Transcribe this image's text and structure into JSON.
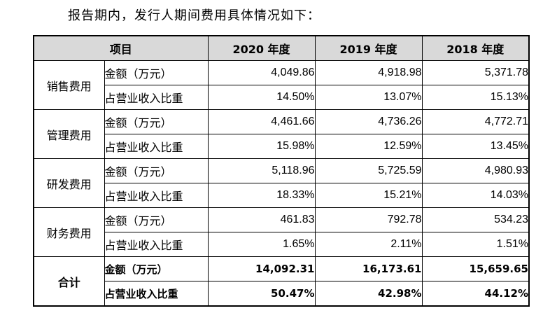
{
  "intro": "报告期内，发行人期间费用具体情况如下：",
  "headers": {
    "item": "项目",
    "y2020": "2020 年度",
    "y2019": "2019 年度",
    "y2018": "2018 年度"
  },
  "rows": [
    {
      "category": "销售费用",
      "amount": {
        "label": "金额（万元）",
        "y2020": "4,049.86",
        "y2019": "4,918.98",
        "y2018": "5,371.78"
      },
      "ratio": {
        "label": "占营业收入比重",
        "y2020": "14.50%",
        "y2019": "13.07%",
        "y2018": "15.13%"
      }
    },
    {
      "category": "管理费用",
      "amount": {
        "label": "金额（万元）",
        "y2020": "4,461.66",
        "y2019": "4,736.26",
        "y2018": "4,772.71"
      },
      "ratio": {
        "label": "占营业收入比重",
        "y2020": "15.98%",
        "y2019": "12.59%",
        "y2018": "13.45%"
      }
    },
    {
      "category": "研发费用",
      "amount": {
        "label": "金额（万元）",
        "y2020": "5,118.96",
        "y2019": "5,725.59",
        "y2018": "4,980.93"
      },
      "ratio": {
        "label": "占营业收入比重",
        "y2020": "18.33%",
        "y2019": "15.21%",
        "y2018": "14.03%"
      }
    },
    {
      "category": "财务费用",
      "amount": {
        "label": "金额（万元）",
        "y2020": "461.83",
        "y2019": "792.78",
        "y2018": "534.23"
      },
      "ratio": {
        "label": "占营业收入比重",
        "y2020": "1.65%",
        "y2019": "2.11%",
        "y2018": "1.51%"
      }
    },
    {
      "category": "合计",
      "amount": {
        "label": "金额（万元）",
        "y2020": "14,092.31",
        "y2019": "16,173.61",
        "y2018": "15,659.65"
      },
      "ratio": {
        "label": "占营业收入比重",
        "y2020": "50.47%",
        "y2019": "42.98%",
        "y2018": "44.12%"
      }
    }
  ]
}
